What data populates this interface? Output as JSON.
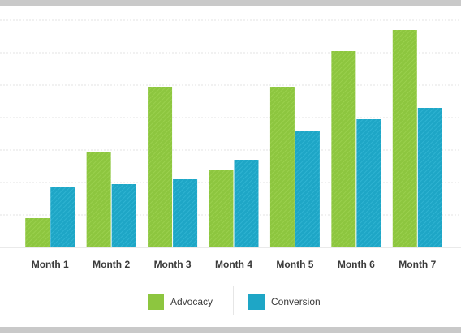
{
  "chart_data": {
    "type": "bar",
    "title": "",
    "xlabel": "",
    "ylabel": "",
    "categories": [
      "Month 1",
      "Month 2",
      "Month 3",
      "Month 4",
      "Month 5",
      "Month 6",
      "Month 7"
    ],
    "series": [
      {
        "name": "Advocacy",
        "color": "#8dc63f",
        "values": [
          18,
          59,
          99,
          48,
          99,
          121,
          134
        ]
      },
      {
        "name": "Conversion",
        "color": "#1ea6c6",
        "values": [
          37,
          39,
          42,
          54,
          72,
          79,
          86
        ]
      }
    ],
    "ylim": [
      0,
      140
    ],
    "grid": true,
    "legend_position": "bottom"
  }
}
